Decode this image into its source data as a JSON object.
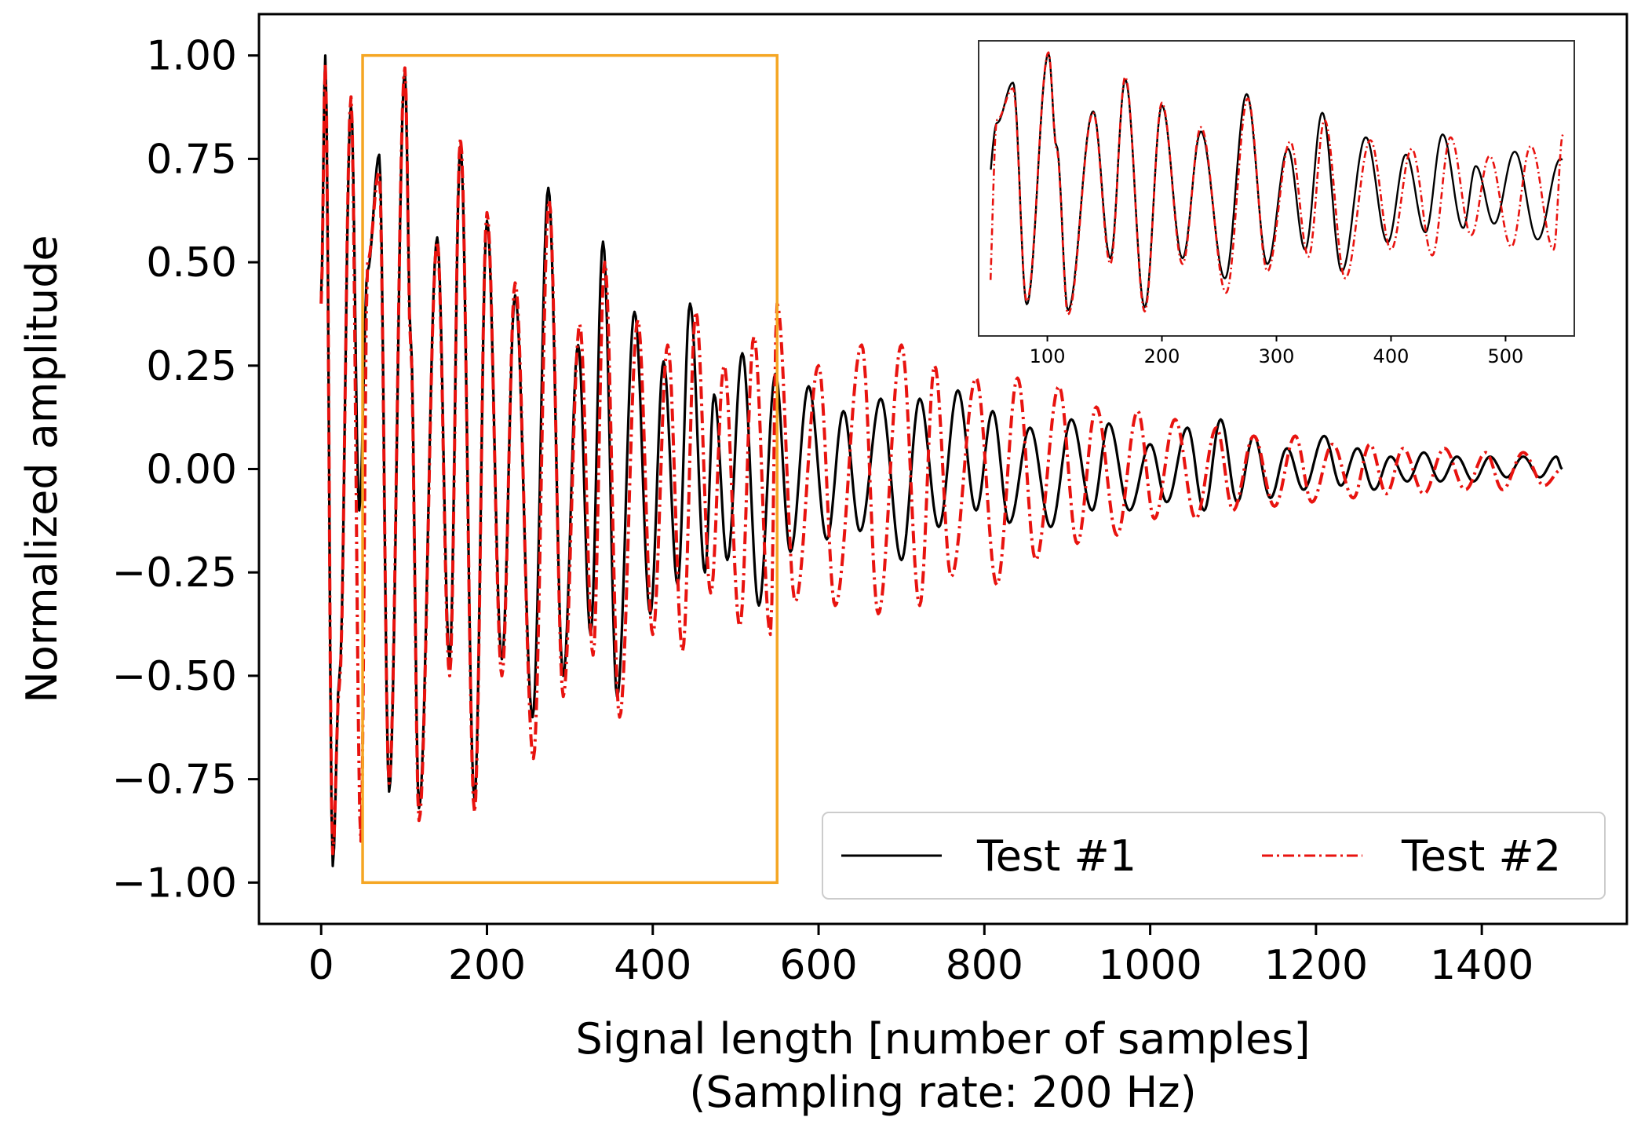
{
  "chart_data": {
    "type": "line",
    "title": "",
    "xlabel": "Signal length [number of samples]",
    "xlabel_line2": "(Sampling rate: 200 Hz)",
    "ylabel": "Normalized amplitude",
    "xlim": [
      -75,
      1575
    ],
    "ylim": [
      -1.1,
      1.1
    ],
    "xticks": [
      0,
      200,
      400,
      600,
      800,
      1000,
      1200,
      1400
    ],
    "xtick_labels": [
      "0",
      "200",
      "400",
      "600",
      "800",
      "1000",
      "1200",
      "1400"
    ],
    "yticks": [
      1.0,
      0.75,
      0.5,
      0.25,
      0.0,
      -0.25,
      -0.5,
      -0.75,
      -1.0
    ],
    "ytick_labels": [
      "1.00",
      "0.75",
      "0.50",
      "0.25",
      "0.00",
      "−0.25",
      "−0.50",
      "−0.75",
      "−1.00"
    ],
    "legend_position": "lower-right",
    "highlight_box": {
      "x_range": [
        50,
        550
      ],
      "y_range": [
        -1.0,
        1.0
      ],
      "color": "#F5A623"
    },
    "series": [
      {
        "name": "Test #1",
        "color": "#000000",
        "style": "solid",
        "peaks": [
          [
            0,
            0.42
          ],
          [
            5,
            1.0
          ],
          [
            14,
            -0.96
          ],
          [
            22,
            -0.5
          ],
          [
            36,
            0.88
          ],
          [
            46,
            -0.1
          ],
          [
            56,
            0.48
          ],
          [
            70,
            0.76
          ],
          [
            82,
            -0.78
          ],
          [
            101,
            0.96
          ],
          [
            108,
            0.32
          ],
          [
            118,
            -0.82
          ],
          [
            140,
            0.56
          ],
          [
            155,
            -0.46
          ],
          [
            168,
            0.78
          ],
          [
            185,
            -0.8
          ],
          [
            200,
            0.6
          ],
          [
            218,
            -0.46
          ],
          [
            234,
            0.42
          ],
          [
            255,
            -0.6
          ],
          [
            274,
            0.68
          ],
          [
            292,
            -0.5
          ],
          [
            310,
            0.3
          ],
          [
            325,
            -0.4
          ],
          [
            340,
            0.55
          ],
          [
            357,
            -0.55
          ],
          [
            378,
            0.38
          ],
          [
            397,
            -0.35
          ],
          [
            413,
            0.26
          ],
          [
            430,
            -0.28
          ],
          [
            445,
            0.4
          ],
          [
            463,
            -0.25
          ],
          [
            474,
            0.18
          ],
          [
            490,
            -0.22
          ],
          [
            508,
            0.28
          ],
          [
            528,
            -0.33
          ],
          [
            548,
            0.23
          ],
          [
            566,
            -0.2
          ],
          [
            588,
            0.2
          ],
          [
            610,
            -0.17
          ],
          [
            630,
            0.14
          ],
          [
            650,
            -0.15
          ],
          [
            675,
            0.17
          ],
          [
            700,
            -0.22
          ],
          [
            722,
            0.17
          ],
          [
            745,
            -0.14
          ],
          [
            768,
            0.19
          ],
          [
            790,
            -0.1
          ],
          [
            810,
            0.14
          ],
          [
            830,
            -0.13
          ],
          [
            855,
            0.1
          ],
          [
            880,
            -0.14
          ],
          [
            905,
            0.12
          ],
          [
            930,
            -0.1
          ],
          [
            950,
            0.11
          ],
          [
            975,
            -0.1
          ],
          [
            1000,
            0.06
          ],
          [
            1020,
            -0.08
          ],
          [
            1045,
            0.1
          ],
          [
            1065,
            -0.1
          ],
          [
            1085,
            0.12
          ],
          [
            1105,
            -0.08
          ],
          [
            1125,
            0.08
          ],
          [
            1145,
            -0.07
          ],
          [
            1165,
            0.05
          ],
          [
            1185,
            -0.05
          ],
          [
            1210,
            0.08
          ],
          [
            1230,
            -0.04
          ],
          [
            1250,
            0.05
          ],
          [
            1270,
            -0.05
          ],
          [
            1290,
            0.03
          ],
          [
            1310,
            -0.03
          ],
          [
            1330,
            0.04
          ],
          [
            1350,
            -0.03
          ],
          [
            1370,
            0.03
          ],
          [
            1390,
            -0.03
          ],
          [
            1410,
            0.03
          ],
          [
            1430,
            -0.02
          ],
          [
            1450,
            0.03
          ],
          [
            1470,
            -0.02
          ],
          [
            1490,
            0.03
          ],
          [
            1497,
            0.0
          ]
        ]
      },
      {
        "name": "Test #2",
        "color": "#E8130F",
        "style": "dashdot",
        "peaks": [
          [
            0,
            0.4
          ],
          [
            5,
            0.98
          ],
          [
            14,
            -0.93
          ],
          [
            22,
            -0.52
          ],
          [
            36,
            0.9
          ],
          [
            48,
            -0.9
          ],
          [
            56,
            0.5
          ],
          [
            70,
            0.72
          ],
          [
            82,
            -0.76
          ],
          [
            101,
            0.97
          ],
          [
            108,
            0.3
          ],
          [
            118,
            -0.85
          ],
          [
            140,
            0.55
          ],
          [
            155,
            -0.5
          ],
          [
            168,
            0.8
          ],
          [
            185,
            -0.83
          ],
          [
            200,
            0.62
          ],
          [
            218,
            -0.5
          ],
          [
            234,
            0.45
          ],
          [
            256,
            -0.7
          ],
          [
            275,
            0.65
          ],
          [
            292,
            -0.55
          ],
          [
            312,
            0.35
          ],
          [
            328,
            -0.45
          ],
          [
            342,
            0.5
          ],
          [
            360,
            -0.6
          ],
          [
            382,
            0.36
          ],
          [
            400,
            -0.4
          ],
          [
            418,
            0.3
          ],
          [
            436,
            -0.44
          ],
          [
            452,
            0.38
          ],
          [
            470,
            -0.3
          ],
          [
            486,
            0.25
          ],
          [
            505,
            -0.38
          ],
          [
            522,
            0.32
          ],
          [
            542,
            -0.4
          ],
          [
            550,
            0.4
          ],
          [
            572,
            -0.32
          ],
          [
            600,
            0.25
          ],
          [
            620,
            -0.33
          ],
          [
            652,
            0.3
          ],
          [
            672,
            -0.35
          ],
          [
            700,
            0.3
          ],
          [
            722,
            -0.33
          ],
          [
            740,
            0.25
          ],
          [
            760,
            -0.26
          ],
          [
            790,
            0.22
          ],
          [
            815,
            -0.28
          ],
          [
            840,
            0.22
          ],
          [
            862,
            -0.22
          ],
          [
            890,
            0.2
          ],
          [
            912,
            -0.18
          ],
          [
            935,
            0.15
          ],
          [
            960,
            -0.16
          ],
          [
            985,
            0.14
          ],
          [
            1005,
            -0.12
          ],
          [
            1030,
            0.12
          ],
          [
            1055,
            -0.12
          ],
          [
            1080,
            0.1
          ],
          [
            1100,
            -0.1
          ],
          [
            1125,
            0.08
          ],
          [
            1150,
            -0.09
          ],
          [
            1175,
            0.08
          ],
          [
            1195,
            -0.08
          ],
          [
            1220,
            0.06
          ],
          [
            1245,
            -0.07
          ],
          [
            1265,
            0.06
          ],
          [
            1285,
            -0.06
          ],
          [
            1305,
            0.05
          ],
          [
            1330,
            -0.06
          ],
          [
            1355,
            0.05
          ],
          [
            1380,
            -0.05
          ],
          [
            1405,
            0.04
          ],
          [
            1425,
            -0.05
          ],
          [
            1450,
            0.04
          ],
          [
            1475,
            -0.04
          ],
          [
            1497,
            0.0
          ]
        ]
      }
    ],
    "inset": {
      "xlim": [
        40,
        560
      ],
      "ylim": [
        -1.0,
        1.05
      ],
      "xticks": [
        100,
        200,
        300,
        400,
        500
      ],
      "xtick_labels": [
        "100",
        "200",
        "300",
        "400",
        "500"
      ],
      "x_range": [
        50,
        550
      ]
    }
  }
}
